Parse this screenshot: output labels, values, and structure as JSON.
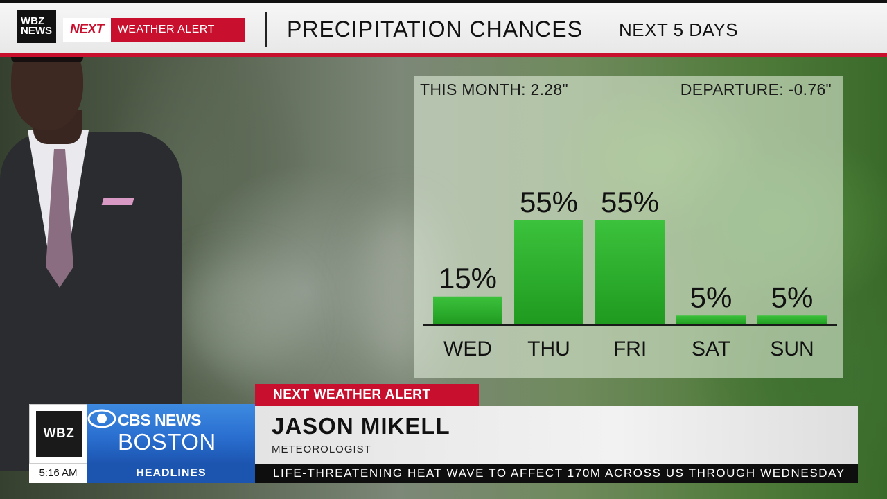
{
  "header": {
    "station_logo": "WBZ NEWS",
    "alert_next": "NEXT",
    "alert_label": "WEATHER ALERT",
    "title": "PRECIPITATION CHANCES",
    "subtitle": "NEXT 5 DAYS"
  },
  "stats": {
    "this_month": "THIS MONTH:  2.28\"",
    "departure": "DEPARTURE:  -0.76\""
  },
  "chart_data": {
    "type": "bar",
    "title": "PRECIPITATION CHANCES",
    "categories": [
      "WED",
      "THU",
      "FRI",
      "SAT",
      "SUN"
    ],
    "values": [
      15,
      55,
      55,
      5,
      5
    ],
    "value_labels": [
      "15%",
      "55%",
      "55%",
      "5%",
      "5%"
    ],
    "ylim": [
      0,
      60
    ],
    "grid": false,
    "colors": {
      "bar": "#3cc23c",
      "bar_dark": "#1f9a1f",
      "baseline": "#1a1a1a"
    }
  },
  "lower_third": {
    "alert": "NEXT WEATHER ALERT",
    "station_box": "WBZ",
    "network_line1": "CBS NEWS",
    "network_line2": "BOSTON",
    "name": "JASON MIKELL",
    "role": "METEOROLOGIST"
  },
  "ticker": {
    "time": "5:16 AM",
    "section": "HEADLINES",
    "text": "LIFE-THREATENING HEAT WAVE TO AFFECT 170M ACROSS US THROUGH WEDNESDAY"
  },
  "colors": {
    "alert_red": "#c8102e",
    "cbs_blue": "#2a6fd0"
  }
}
